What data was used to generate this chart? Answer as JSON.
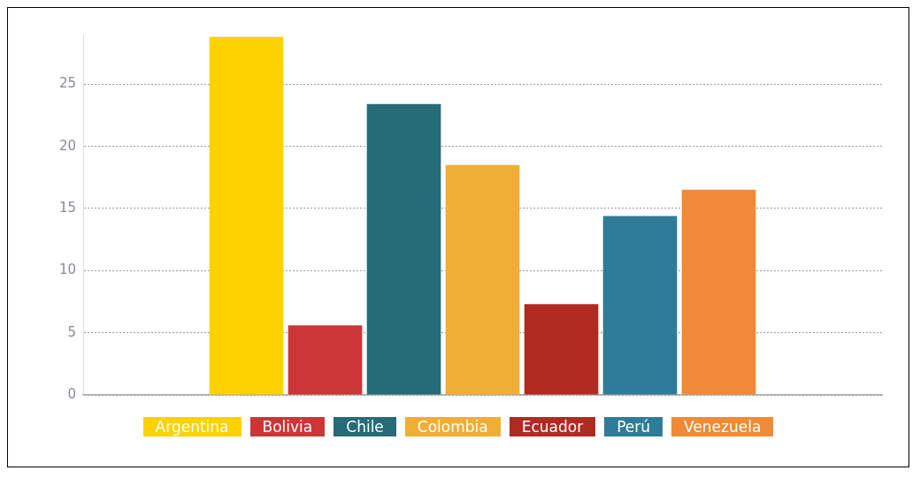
{
  "chart_data": {
    "type": "bar",
    "categories": [
      null
    ],
    "series": [
      {
        "name": "Argentina",
        "color": "#fed100",
        "values": [
          28.8
        ]
      },
      {
        "name": "Bolivia",
        "color": "#cc3636",
        "values": [
          5.6
        ]
      },
      {
        "name": "Chile",
        "color": "#276a78",
        "values": [
          23.4
        ]
      },
      {
        "name": "Colombia",
        "color": "#f0ae37",
        "values": [
          18.5
        ]
      },
      {
        "name": "Ecuador",
        "color": "#b12a22",
        "values": [
          7.3
        ]
      },
      {
        "name": "Perú",
        "color": "#307b97",
        "values": [
          14.4
        ]
      },
      {
        "name": "Venezuela",
        "color": "#f08a36",
        "values": [
          16.5
        ]
      }
    ],
    "ylim": [
      0,
      29
    ],
    "yticks": [
      0,
      5,
      10,
      15,
      20,
      25
    ],
    "grid": "y",
    "legend": "bottom",
    "tick_labels": "y"
  }
}
